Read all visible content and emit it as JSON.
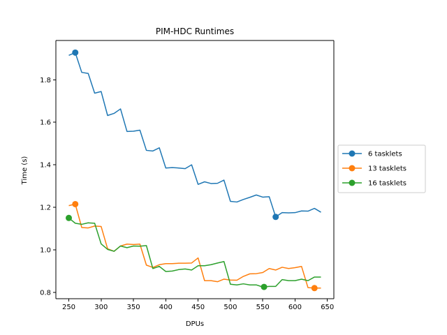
{
  "chart_data": {
    "type": "line",
    "title": "PIM-HDC Runtimes",
    "xlabel": "DPUs",
    "ylabel": "Time (s)",
    "xlim": [
      230,
      660
    ],
    "ylim": [
      0.77,
      1.985
    ],
    "xticks": [
      250,
      300,
      350,
      400,
      450,
      500,
      550,
      600,
      650
    ],
    "yticks": [
      0.8,
      1.0,
      1.2,
      1.4,
      1.6,
      1.8
    ],
    "ytick_labels": [
      "0.8",
      "1.0",
      "1.2",
      "1.4",
      "1.6",
      "1.8"
    ],
    "grid": false,
    "legend_position": "outside-right",
    "x": [
      250,
      260,
      270,
      280,
      290,
      300,
      310,
      320,
      330,
      340,
      350,
      360,
      370,
      380,
      390,
      400,
      410,
      420,
      430,
      440,
      450,
      460,
      470,
      480,
      490,
      500,
      510,
      520,
      530,
      540,
      550,
      560,
      570,
      580,
      590,
      600,
      610,
      620,
      630,
      640
    ],
    "series": [
      {
        "name": "6 tasklets",
        "color": "#1f77b4",
        "marker_at": [
          260,
          570
        ],
        "values": [
          1.915,
          1.928,
          1.835,
          1.83,
          1.737,
          1.745,
          1.632,
          1.642,
          1.663,
          1.557,
          1.558,
          1.563,
          1.468,
          1.465,
          1.48,
          1.385,
          1.387,
          1.385,
          1.382,
          1.4,
          1.308,
          1.32,
          1.312,
          1.313,
          1.328,
          1.228,
          1.225,
          1.237,
          1.247,
          1.258,
          1.248,
          1.25,
          1.155,
          1.175,
          1.174,
          1.175,
          1.183,
          1.182,
          1.195,
          1.177
        ]
      },
      {
        "name": "13 tasklets",
        "color": "#ff7f0e",
        "marker_at": [
          260,
          630
        ],
        "values": [
          1.208,
          1.215,
          1.105,
          1.103,
          1.112,
          1.11,
          1.005,
          0.993,
          1.018,
          1.027,
          1.025,
          1.027,
          0.928,
          0.917,
          0.93,
          0.935,
          0.935,
          0.937,
          0.937,
          0.938,
          0.962,
          0.855,
          0.855,
          0.85,
          0.862,
          0.858,
          0.857,
          0.875,
          0.887,
          0.888,
          0.893,
          0.912,
          0.905,
          0.918,
          0.912,
          0.916,
          0.922,
          0.822,
          0.82,
          0.82
        ]
      },
      {
        "name": "16 tasklets",
        "color": "#2ca02c",
        "marker_at": [
          250,
          552
        ],
        "values": [
          1.15,
          1.125,
          1.12,
          1.127,
          1.125,
          1.028,
          1.002,
          0.993,
          1.018,
          1.01,
          1.018,
          1.017,
          1.02,
          0.912,
          0.922,
          0.898,
          0.9,
          0.907,
          0.91,
          0.905,
          0.925,
          0.925,
          0.93,
          0.938,
          0.945,
          0.838,
          0.835,
          0.84,
          0.835,
          0.835,
          0.825,
          0.828,
          0.828,
          0.86,
          0.855,
          0.855,
          0.862,
          0.855,
          0.872,
          0.872
        ]
      }
    ]
  }
}
